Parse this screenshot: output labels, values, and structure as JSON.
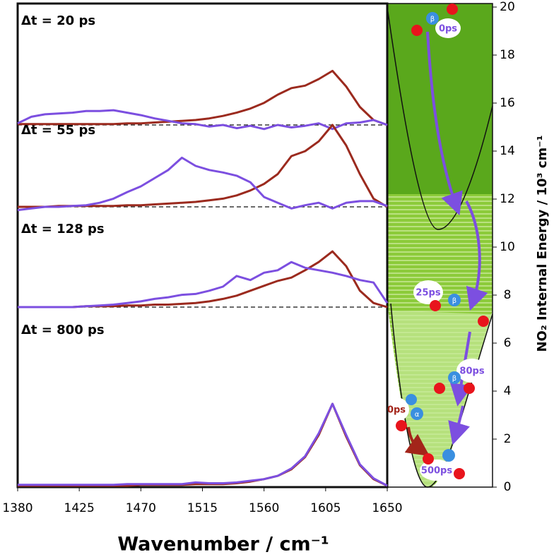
{
  "chart_data": [
    {
      "type": "line",
      "annotation": "Δt = 20 ps",
      "baseline": true,
      "xlim": [
        1380,
        1650
      ],
      "x": [
        1380,
        1390,
        1400,
        1410,
        1420,
        1430,
        1440,
        1450,
        1460,
        1470,
        1480,
        1490,
        1500,
        1510,
        1520,
        1530,
        1540,
        1550,
        1560,
        1570,
        1580,
        1590,
        1600,
        1610,
        1620,
        1630,
        1640,
        1650
      ],
      "series": [
        {
          "color": "#9b2a1e",
          "values": [
            0.01,
            0.01,
            0.01,
            0.01,
            0.01,
            0.01,
            0.01,
            0.01,
            0.02,
            0.02,
            0.03,
            0.04,
            0.05,
            0.06,
            0.08,
            0.11,
            0.15,
            0.2,
            0.27,
            0.37,
            0.45,
            0.48,
            0.56,
            0.66,
            0.47,
            0.22,
            0.06,
            0
          ]
        },
        {
          "color": "#7c4fe0",
          "values": [
            0.02,
            0.1,
            0.13,
            0.14,
            0.15,
            0.17,
            0.17,
            0.18,
            0.15,
            0.12,
            0.08,
            0.05,
            0.02,
            0.01,
            -0.02,
            0,
            -0.04,
            -0.01,
            -0.05,
            0,
            -0.03,
            -0.01,
            0.02,
            -0.05,
            0.02,
            0.03,
            0.06,
            0
          ]
        }
      ]
    },
    {
      "type": "line",
      "annotation": "Δt = 55 ps",
      "baseline": true,
      "xlim": [
        1380,
        1650
      ],
      "x": [
        1380,
        1390,
        1400,
        1410,
        1420,
        1430,
        1440,
        1450,
        1460,
        1470,
        1480,
        1490,
        1500,
        1510,
        1520,
        1530,
        1540,
        1550,
        1560,
        1570,
        1580,
        1590,
        1600,
        1610,
        1620,
        1630,
        1640,
        1650
      ],
      "series": [
        {
          "color": "#9b2a1e",
          "values": [
            0,
            0,
            0,
            0.01,
            0.01,
            0.01,
            0.01,
            0.01,
            0.02,
            0.02,
            0.03,
            0.04,
            0.05,
            0.06,
            0.08,
            0.1,
            0.14,
            0.2,
            0.28,
            0.4,
            0.62,
            0.68,
            0.8,
            1.0,
            0.75,
            0.4,
            0.1,
            0
          ]
        },
        {
          "color": "#7c4fe0",
          "values": [
            -0.04,
            -0.02,
            0,
            0,
            0.01,
            0.02,
            0.05,
            0.1,
            0.18,
            0.25,
            0.35,
            0.45,
            0.6,
            0.5,
            0.45,
            0.42,
            0.38,
            0.3,
            0.12,
            0.05,
            -0.02,
            0.02,
            0.05,
            -0.02,
            0.05,
            0.07,
            0.07,
            0.01
          ]
        }
      ]
    },
    {
      "type": "line",
      "annotation": "Δt = 128 ps",
      "baseline": true,
      "xlim": [
        1380,
        1650
      ],
      "x": [
        1380,
        1390,
        1400,
        1410,
        1420,
        1430,
        1440,
        1450,
        1460,
        1470,
        1480,
        1490,
        1500,
        1510,
        1520,
        1530,
        1540,
        1550,
        1560,
        1570,
        1580,
        1590,
        1600,
        1610,
        1620,
        1630,
        1640,
        1650
      ],
      "series": [
        {
          "color": "#9b2a1e",
          "values": [
            0,
            0,
            0,
            0,
            0,
            0.01,
            0.01,
            0.01,
            0.02,
            0.02,
            0.03,
            0.03,
            0.04,
            0.05,
            0.07,
            0.1,
            0.14,
            0.2,
            0.26,
            0.32,
            0.36,
            0.45,
            0.55,
            0.68,
            0.5,
            0.2,
            0.05,
            0
          ]
        },
        {
          "color": "#7c4fe0",
          "values": [
            0,
            0,
            0,
            0,
            0,
            0.01,
            0.02,
            0.03,
            0.05,
            0.07,
            0.1,
            0.12,
            0.15,
            0.16,
            0.2,
            0.25,
            0.38,
            0.33,
            0.42,
            0.45,
            0.55,
            0.48,
            0.45,
            0.42,
            0.38,
            0.33,
            0.3,
            0.05
          ]
        }
      ]
    },
    {
      "type": "line",
      "annotation": "Δt = 800 ps",
      "baseline": false,
      "xlim": [
        1380,
        1650
      ],
      "xticks": [
        1380,
        1425,
        1470,
        1515,
        1560,
        1605,
        1650
      ],
      "x_label": "Wavenumber / cm⁻¹",
      "x": [
        1380,
        1390,
        1400,
        1410,
        1420,
        1430,
        1440,
        1450,
        1460,
        1470,
        1480,
        1490,
        1500,
        1510,
        1520,
        1530,
        1540,
        1550,
        1560,
        1570,
        1580,
        1590,
        1600,
        1610,
        1620,
        1630,
        1640,
        1650
      ],
      "series": [
        {
          "color": "#9b2a1e",
          "values": [
            0,
            0,
            0,
            0,
            0,
            0,
            0,
            0,
            0,
            0.01,
            0.01,
            0.01,
            0.01,
            0.02,
            0.02,
            0.02,
            0.03,
            0.05,
            0.08,
            0.12,
            0.2,
            0.35,
            0.62,
            1.0,
            0.6,
            0.25,
            0.08,
            0
          ]
        },
        {
          "color": "#7c4fe0",
          "values": [
            0.01,
            0.01,
            0.01,
            0.01,
            0.01,
            0.01,
            0.01,
            0.01,
            0.02,
            0.02,
            0.02,
            0.02,
            0.02,
            0.04,
            0.03,
            0.03,
            0.04,
            0.06,
            0.08,
            0.12,
            0.21,
            0.36,
            0.64,
            1.0,
            0.62,
            0.26,
            0.09,
            0
          ]
        }
      ]
    },
    {
      "type": "energy",
      "y_label": "NO₂ Internal Energy / 10³ cm⁻¹",
      "ylim": [
        0,
        20
      ],
      "yticks": [
        0,
        2,
        4,
        6,
        8,
        10,
        12,
        14,
        16,
        18,
        20
      ],
      "molecule_labels": [
        "0ps",
        "25ps",
        "80ps",
        "0ps",
        "500ps"
      ],
      "beta": "β",
      "alpha": "α"
    }
  ]
}
